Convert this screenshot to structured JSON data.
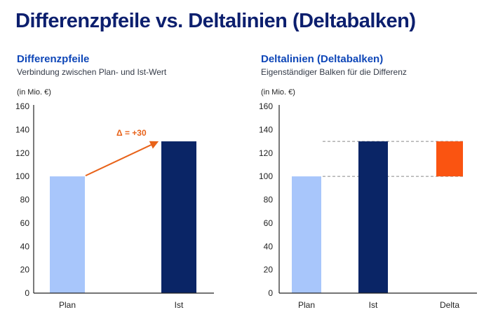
{
  "title": "Differenzpfeile vs. Deltalinien (Deltabalken)",
  "colors": {
    "plan": "#a8c6fb",
    "ist": "#0a2566",
    "delta": "#fa5411",
    "arrow": "#e8631a",
    "axis": "#222222",
    "dashed": "#888888"
  },
  "chart_data": [
    {
      "type": "bar",
      "title": "Differenzpfeile",
      "subtitle": "Verbindung zwischen Plan- und Ist-Wert",
      "unit_label": "(in Mio. €)",
      "categories": [
        "Plan",
        "Ist"
      ],
      "values": [
        100,
        130
      ],
      "ylim": [
        0,
        160
      ],
      "yticks": [
        0,
        20,
        40,
        60,
        80,
        100,
        120,
        140,
        160
      ],
      "grid": false,
      "annotation": {
        "text": "Δ = +30",
        "type": "arrow",
        "from_value": 100,
        "to_value": 130
      }
    },
    {
      "type": "bar",
      "title": "Deltalinien (Deltabalken)",
      "subtitle": "Eigenständiger Balken für die Differenz",
      "unit_label": "(in Mio. €)",
      "categories": [
        "Plan",
        "Ist",
        "Delta"
      ],
      "values": [
        100,
        130,
        30
      ],
      "delta_range": [
        100,
        130
      ],
      "ylim": [
        0,
        160
      ],
      "yticks": [
        0,
        20,
        40,
        60,
        80,
        100,
        120,
        140,
        160
      ],
      "grid": false,
      "reference_lines": [
        100,
        130
      ]
    }
  ]
}
